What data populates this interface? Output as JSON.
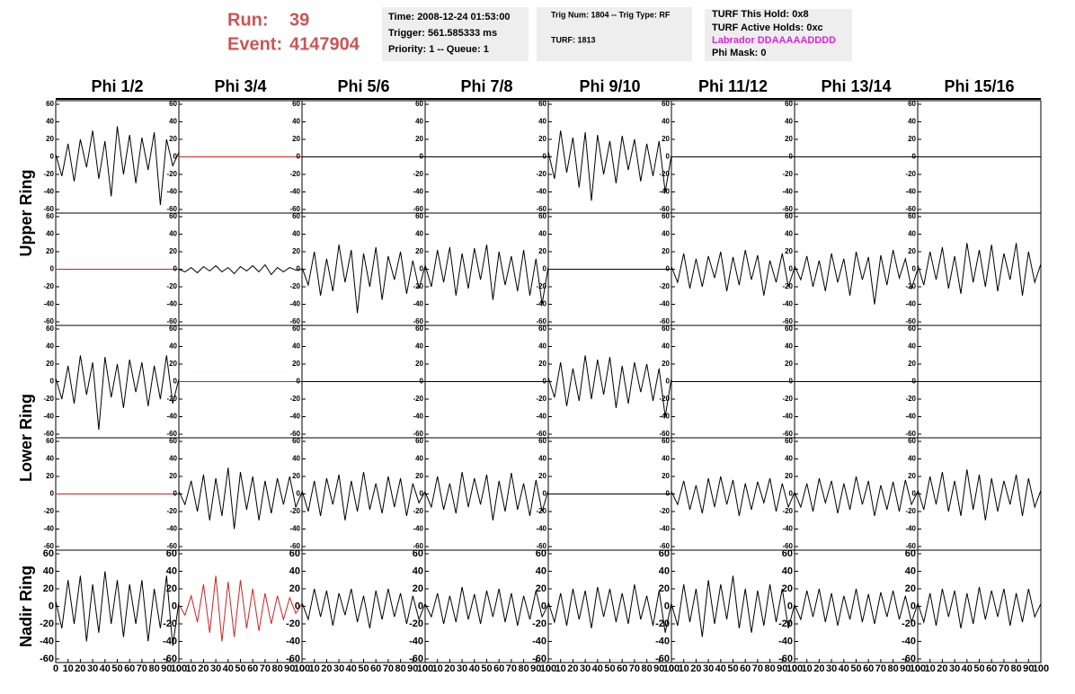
{
  "header": {
    "run_label": "Run:",
    "run": "39",
    "event_label": "Event:",
    "event": "4147904",
    "time": "Time: 2008-12-24 01:53:00",
    "trigger": "Trigger: 561.585333 ms",
    "priority": "Priority: 1 -- Queue: 1",
    "trig": "Trig Num: 1804 -- Trig Type: RF",
    "turf": "TURF: 1813",
    "hold": "TURF This Hold: 0x8",
    "active": "TURF Active Holds: 0xc",
    "labrador": "Labrador DDAAAAADDDD",
    "phimask": "Phi Mask: 0"
  },
  "chart_data": {
    "type": "line",
    "columns": [
      "Phi 1/2",
      "Phi 3/4",
      "Phi 5/6",
      "Phi 7/8",
      "Phi 9/10",
      "Phi 11/12",
      "Phi 13/14",
      "Phi 15/16"
    ],
    "row_labels": [
      "Upper Ring",
      "Lower Ring",
      "Nadir Ring"
    ],
    "x": [
      0,
      5,
      10,
      15,
      20,
      25,
      30,
      35,
      40,
      45,
      50,
      55,
      60,
      65,
      70,
      75,
      80,
      85,
      90,
      95,
      100
    ],
    "xlim": [
      0,
      100
    ],
    "xticks": [
      0,
      10,
      20,
      30,
      40,
      50,
      60,
      70,
      80,
      90,
      100
    ],
    "ylim": [
      -60,
      60
    ],
    "yticks": [
      -60,
      -40,
      -20,
      0,
      20,
      40,
      60
    ],
    "panels": [
      [
        {
          "color": "#000000",
          "values": [
            3,
            -22,
            15,
            -28,
            20,
            -12,
            30,
            -25,
            18,
            -45,
            35,
            -20,
            25,
            -30,
            22,
            -15,
            28,
            -55,
            20,
            -10,
            5
          ]
        },
        {
          "color": "#cc2222",
          "values": [
            0,
            0,
            0,
            0,
            0,
            0,
            0,
            0,
            0,
            0,
            0,
            0,
            0,
            0,
            0,
            0,
            0,
            0,
            0,
            0,
            0
          ]
        },
        {
          "color": "#000000",
          "values": [
            0,
            0,
            0,
            0,
            0,
            0,
            0,
            0,
            0,
            0,
            0,
            0,
            0,
            0,
            0,
            0,
            0,
            0,
            0,
            0,
            0
          ]
        },
        {
          "color": "#000000",
          "values": [
            0,
            0,
            0,
            0,
            0,
            0,
            0,
            0,
            0,
            0,
            0,
            0,
            0,
            0,
            0,
            0,
            0,
            0,
            0,
            0,
            0
          ]
        },
        {
          "color": "#000000",
          "values": [
            6,
            -25,
            30,
            -18,
            22,
            -35,
            28,
            -50,
            25,
            -20,
            18,
            -30,
            24,
            -15,
            20,
            -28,
            15,
            -22,
            18,
            -40,
            2
          ]
        },
        {
          "color": "#000000",
          "values": [
            0,
            0,
            0,
            0,
            0,
            0,
            0,
            0,
            0,
            0,
            0,
            0,
            0,
            0,
            0,
            0,
            0,
            0,
            0,
            0,
            0
          ]
        },
        {
          "color": "#000000",
          "values": [
            0,
            0,
            0,
            0,
            0,
            0,
            0,
            0,
            0,
            0,
            0,
            0,
            0,
            0,
            0,
            0,
            0,
            0,
            0,
            0,
            0
          ]
        },
        {
          "color": "#000000",
          "values": [
            0,
            0,
            0,
            0,
            0,
            0,
            0,
            0,
            0,
            0,
            0,
            0,
            0,
            0,
            0,
            0,
            0,
            0,
            0,
            0,
            0
          ]
        }
      ],
      [
        {
          "color": "#cc2222",
          "values": [
            0,
            0,
            0,
            0,
            0,
            0,
            0,
            0,
            0,
            0,
            0,
            0,
            0,
            0,
            0,
            0,
            0,
            0,
            0,
            0,
            0
          ]
        },
        {
          "color": "#000000",
          "values": [
            0,
            -3,
            2,
            -4,
            3,
            -2,
            4,
            -3,
            2,
            -5,
            3,
            -2,
            4,
            -3,
            5,
            -6,
            2,
            -3,
            2,
            -1,
            0
          ]
        },
        {
          "color": "#000000",
          "values": [
            2,
            -18,
            20,
            -30,
            12,
            -25,
            28,
            -15,
            22,
            -50,
            18,
            -20,
            25,
            -35,
            15,
            -12,
            20,
            -28,
            10,
            -22,
            4
          ]
        },
        {
          "color": "#000000",
          "values": [
            5,
            -20,
            22,
            -15,
            25,
            -30,
            18,
            -22,
            24,
            -12,
            28,
            -35,
            20,
            -18,
            15,
            -25,
            22,
            -30,
            12,
            -40,
            3
          ]
        },
        {
          "color": "#000000",
          "values": [
            0,
            0,
            0,
            0,
            0,
            0,
            0,
            0,
            0,
            0,
            0,
            0,
            0,
            0,
            0,
            0,
            0,
            0,
            0,
            0,
            0
          ]
        },
        {
          "color": "#000000",
          "values": [
            3,
            -15,
            18,
            -22,
            12,
            -20,
            15,
            -10,
            20,
            -25,
            14,
            -18,
            22,
            -12,
            16,
            -30,
            10,
            -15,
            18,
            -20,
            2
          ]
        },
        {
          "color": "#000000",
          "values": [
            4,
            -12,
            15,
            -20,
            10,
            -25,
            18,
            -15,
            12,
            -30,
            20,
            -12,
            14,
            -40,
            16,
            -18,
            22,
            -10,
            12,
            -22,
            0
          ]
        },
        {
          "color": "#000000",
          "values": [
            5,
            -18,
            20,
            -12,
            25,
            -22,
            15,
            -28,
            30,
            -15,
            22,
            -20,
            28,
            -25,
            18,
            -12,
            30,
            -30,
            20,
            -15,
            6
          ]
        }
      ],
      [
        {
          "color": "#000000",
          "values": [
            4,
            -20,
            18,
            -25,
            30,
            -15,
            22,
            -55,
            28,
            -18,
            20,
            -30,
            25,
            -12,
            22,
            -28,
            18,
            -20,
            30,
            -25,
            3
          ]
        },
        {
          "color": "#cc2222",
          "values": [
            0,
            0,
            0,
            0,
            0,
            0,
            0,
            0,
            0,
            0,
            0,
            0,
            0,
            0,
            0,
            0,
            0,
            0,
            0,
            0,
            0
          ]
        },
        {
          "color": "#000000",
          "values": [
            0,
            0,
            0,
            0,
            0,
            0,
            0,
            0,
            0,
            0,
            0,
            0,
            0,
            0,
            0,
            0,
            0,
            0,
            0,
            0,
            0
          ]
        },
        {
          "color": "#000000",
          "values": [
            0,
            0,
            0,
            0,
            0,
            0,
            0,
            0,
            0,
            0,
            0,
            0,
            0,
            0,
            0,
            0,
            0,
            0,
            0,
            0,
            0
          ]
        },
        {
          "color": "#000000",
          "values": [
            5,
            -18,
            22,
            -28,
            15,
            -22,
            30,
            -20,
            25,
            -15,
            28,
            -30,
            18,
            -25,
            22,
            -12,
            20,
            -22,
            15,
            -40,
            4
          ]
        },
        {
          "color": "#000000",
          "values": [
            0,
            0,
            0,
            0,
            0,
            0,
            0,
            0,
            0,
            0,
            0,
            0,
            0,
            0,
            0,
            0,
            0,
            0,
            0,
            0,
            0
          ]
        },
        {
          "color": "#000000",
          "values": [
            0,
            0,
            0,
            0,
            0,
            0,
            0,
            0,
            0,
            0,
            0,
            0,
            0,
            0,
            0,
            0,
            0,
            0,
            0,
            0,
            0
          ]
        },
        {
          "color": "#000000",
          "values": [
            0,
            0,
            0,
            0,
            0,
            0,
            0,
            0,
            0,
            0,
            0,
            0,
            0,
            0,
            0,
            0,
            0,
            0,
            0,
            0,
            0
          ]
        }
      ],
      [
        {
          "color": "#cc2222",
          "values": [
            0,
            0,
            0,
            0,
            0,
            0,
            0,
            0,
            0,
            0,
            0,
            0,
            0,
            0,
            0,
            0,
            0,
            0,
            0,
            0,
            0
          ]
        },
        {
          "color": "#000000",
          "values": [
            3,
            -12,
            15,
            -20,
            22,
            -30,
            18,
            -25,
            30,
            -40,
            25,
            -18,
            20,
            -30,
            15,
            -22,
            18,
            -12,
            20,
            -15,
            2
          ]
        },
        {
          "color": "#000000",
          "values": [
            4,
            -20,
            15,
            -25,
            18,
            -12,
            22,
            -30,
            15,
            -20,
            25,
            -18,
            12,
            -22,
            20,
            -15,
            18,
            -25,
            12,
            -10,
            3
          ]
        },
        {
          "color": "#000000",
          "values": [
            2,
            -15,
            20,
            -18,
            12,
            -22,
            25,
            -15,
            18,
            -12,
            22,
            -30,
            15,
            -20,
            24,
            -18,
            12,
            -25,
            16,
            -20,
            4
          ]
        },
        {
          "color": "#000000",
          "values": [
            0,
            0,
            0,
            0,
            0,
            0,
            0,
            0,
            0,
            0,
            0,
            0,
            0,
            0,
            0,
            0,
            0,
            0,
            0,
            0,
            0
          ]
        },
        {
          "color": "#000000",
          "values": [
            3,
            -12,
            15,
            -18,
            10,
            -22,
            18,
            -15,
            20,
            -12,
            16,
            -25,
            12,
            -18,
            14,
            -10,
            18,
            -20,
            12,
            -15,
            2
          ]
        },
        {
          "color": "#000000",
          "values": [
            2,
            -15,
            12,
            -20,
            18,
            -10,
            15,
            -22,
            12,
            -18,
            20,
            -12,
            15,
            -25,
            10,
            -18,
            14,
            -20,
            16,
            -12,
            3
          ]
        },
        {
          "color": "#000000",
          "values": [
            5,
            -18,
            20,
            -12,
            25,
            -20,
            15,
            -25,
            28,
            -18,
            22,
            -30,
            18,
            -20,
            15,
            -12,
            22,
            -25,
            18,
            -15,
            4
          ]
        }
      ],
      [
        {
          "color": "#000000",
          "values": [
            6,
            -25,
            30,
            -20,
            35,
            -40,
            25,
            -30,
            40,
            -20,
            30,
            -35,
            25,
            -20,
            30,
            -40,
            20,
            -25,
            35,
            -45,
            5
          ]
        },
        {
          "color": "#cc2222",
          "values": [
            2,
            -10,
            12,
            -18,
            25,
            -30,
            35,
            -40,
            28,
            -35,
            30,
            -25,
            20,
            -28,
            15,
            -20,
            12,
            -15,
            10,
            -8,
            3
          ]
        },
        {
          "color": "#000000",
          "values": [
            4,
            -15,
            20,
            -12,
            18,
            -22,
            15,
            -10,
            20,
            -18,
            12,
            -25,
            18,
            -15,
            20,
            -12,
            15,
            -20,
            12,
            -15,
            3
          ]
        },
        {
          "color": "#000000",
          "values": [
            3,
            -12,
            15,
            -20,
            12,
            -18,
            22,
            -15,
            14,
            -20,
            18,
            -12,
            20,
            -18,
            15,
            -22,
            12,
            -15,
            18,
            -12,
            2
          ]
        },
        {
          "color": "#000000",
          "values": [
            5,
            -18,
            15,
            -22,
            20,
            -15,
            18,
            -25,
            22,
            -12,
            20,
            -18,
            15,
            -20,
            25,
            -15,
            12,
            -22,
            18,
            -30,
            4
          ]
        },
        {
          "color": "#000000",
          "values": [
            3,
            -22,
            25,
            -18,
            20,
            -35,
            30,
            -20,
            25,
            -15,
            35,
            -25,
            20,
            -30,
            18,
            -22,
            25,
            -18,
            20,
            -25,
            2
          ]
        },
        {
          "color": "#000000",
          "values": [
            2,
            -15,
            18,
            -12,
            20,
            -18,
            15,
            -22,
            12,
            -15,
            20,
            -18,
            14,
            -20,
            16,
            -12,
            18,
            -15,
            12,
            -18,
            3
          ]
        },
        {
          "color": "#000000",
          "values": [
            4,
            -18,
            15,
            -22,
            20,
            -12,
            18,
            -25,
            15,
            -20,
            22,
            -15,
            18,
            -12,
            20,
            -22,
            15,
            -18,
            20,
            -12,
            3
          ]
        }
      ]
    ]
  }
}
